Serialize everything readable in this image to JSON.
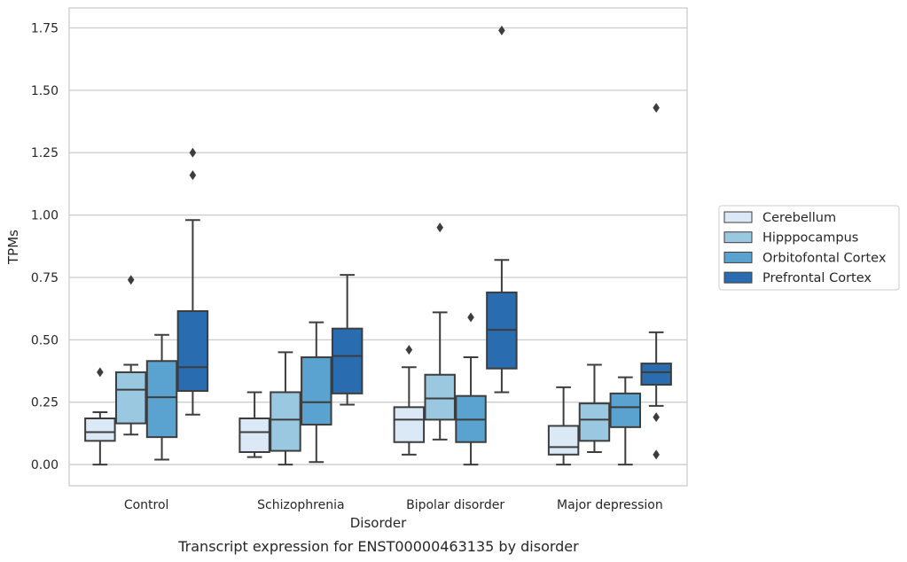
{
  "chart_data": {
    "type": "box",
    "xlabel": "Disorder",
    "ylabel": "TPMs",
    "caption": "Transcript expression for ENST00000463135 by disorder",
    "ylim": [
      -0.085,
      1.83
    ],
    "yticks": [
      "0.00",
      "0.25",
      "0.50",
      "0.75",
      "1.00",
      "1.25",
      "1.50",
      "1.75"
    ],
    "grid": "horizontal",
    "legend_position": "right",
    "categories": [
      "Control",
      "Schizophrenia",
      "Bipolar disorder",
      "Major depression"
    ],
    "series": [
      {
        "name": "Cerebellum",
        "color": "#dbe9f6",
        "boxes": [
          {
            "whislo": 0.0,
            "q1": 0.095,
            "med": 0.13,
            "q3": 0.185,
            "whishi": 0.21,
            "fliers": [
              0.37
            ]
          },
          {
            "whislo": 0.03,
            "q1": 0.05,
            "med": 0.13,
            "q3": 0.185,
            "whishi": 0.29,
            "fliers": []
          },
          {
            "whislo": 0.04,
            "q1": 0.09,
            "med": 0.18,
            "q3": 0.23,
            "whishi": 0.39,
            "fliers": [
              0.46
            ]
          },
          {
            "whislo": 0.0,
            "q1": 0.04,
            "med": 0.07,
            "q3": 0.155,
            "whishi": 0.31,
            "fliers": []
          }
        ]
      },
      {
        "name": "Hipppocampus",
        "color": "#9ac8e0",
        "boxes": [
          {
            "whislo": 0.12,
            "q1": 0.165,
            "med": 0.3,
            "q3": 0.37,
            "whishi": 0.4,
            "fliers": [
              0.74
            ]
          },
          {
            "whislo": 0.0,
            "q1": 0.055,
            "med": 0.18,
            "q3": 0.29,
            "whishi": 0.45,
            "fliers": []
          },
          {
            "whislo": 0.1,
            "q1": 0.18,
            "med": 0.265,
            "q3": 0.36,
            "whishi": 0.61,
            "fliers": [
              0.95
            ]
          },
          {
            "whislo": 0.05,
            "q1": 0.095,
            "med": 0.18,
            "q3": 0.245,
            "whishi": 0.4,
            "fliers": []
          }
        ]
      },
      {
        "name": "Orbitofontal Cortex",
        "color": "#5aa2cf",
        "boxes": [
          {
            "whislo": 0.02,
            "q1": 0.11,
            "med": 0.27,
            "q3": 0.415,
            "whishi": 0.52,
            "fliers": []
          },
          {
            "whislo": 0.01,
            "q1": 0.16,
            "med": 0.25,
            "q3": 0.43,
            "whishi": 0.57,
            "fliers": []
          },
          {
            "whislo": 0.0,
            "q1": 0.09,
            "med": 0.18,
            "q3": 0.275,
            "whishi": 0.43,
            "fliers": [
              0.59
            ]
          },
          {
            "whislo": 0.0,
            "q1": 0.15,
            "med": 0.23,
            "q3": 0.285,
            "whishi": 0.35,
            "fliers": []
          }
        ]
      },
      {
        "name": "Prefrontal Cortex",
        "color": "#2a6cb0",
        "boxes": [
          {
            "whislo": 0.2,
            "q1": 0.295,
            "med": 0.39,
            "q3": 0.615,
            "whishi": 0.98,
            "fliers": [
              1.16,
              1.25
            ]
          },
          {
            "whislo": 0.24,
            "q1": 0.285,
            "med": 0.435,
            "q3": 0.545,
            "whishi": 0.76,
            "fliers": []
          },
          {
            "whislo": 0.29,
            "q1": 0.385,
            "med": 0.54,
            "q3": 0.69,
            "whishi": 0.82,
            "fliers": [
              1.74
            ]
          },
          {
            "whislo": 0.235,
            "q1": 0.32,
            "med": 0.37,
            "q3": 0.405,
            "whishi": 0.53,
            "fliers": [
              0.04,
              0.19,
              1.43
            ]
          }
        ]
      }
    ]
  }
}
